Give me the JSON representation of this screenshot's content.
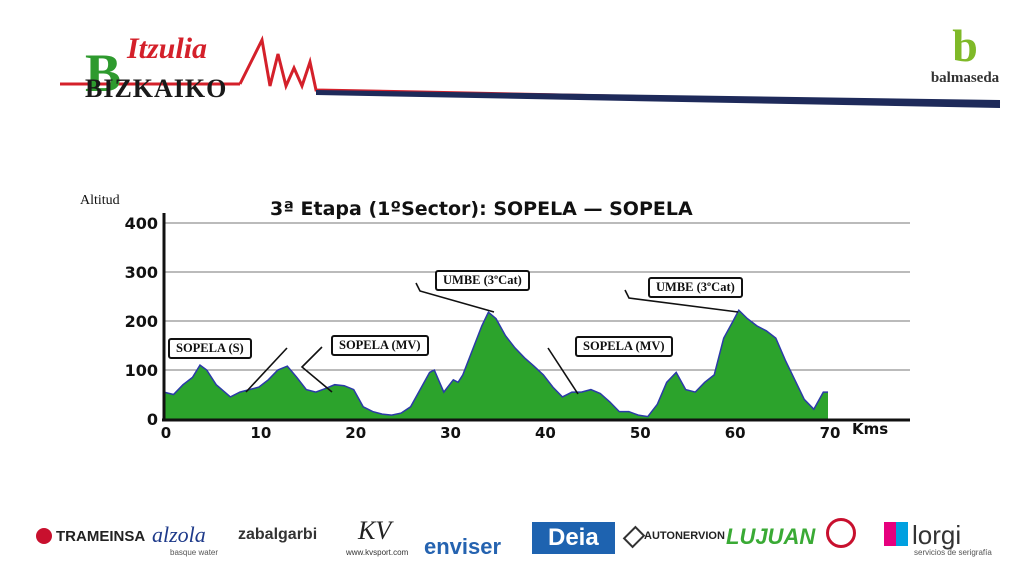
{
  "header": {
    "brand_top": "Itzulia",
    "brand_bottom": "BIZKAIKO",
    "brand_initial": "B",
    "sponsor_mark": "b",
    "sponsor_name": "balmaseda",
    "colors": {
      "red": "#d4202a",
      "green": "#2e9a2e",
      "navy": "#1e2a5a"
    }
  },
  "chart_data": {
    "type": "area",
    "title": "3ª Etapa (1ºSector): SOPELA — SOPELA",
    "ylabel": "Altitud",
    "xlabel": "Kms",
    "xlim": [
      0,
      70
    ],
    "ylim": [
      0,
      400
    ],
    "xticks": [
      "0",
      "10",
      "20",
      "30",
      "40",
      "50",
      "60",
      "70"
    ],
    "yticks": [
      "0",
      "100",
      "200",
      "300",
      "400"
    ],
    "grid": true,
    "fill_color": "#2ca32c",
    "line_color": "#2b3aa8",
    "x": [
      0,
      1,
      2,
      3,
      3.8,
      4.5,
      5.5,
      7,
      8,
      9,
      10,
      11,
      12,
      13,
      14,
      15,
      16,
      17,
      18,
      19,
      20,
      21,
      22,
      23,
      24,
      25,
      26,
      27,
      28,
      28.5,
      29.5,
      30.5,
      31,
      31.5,
      32.5,
      33.5,
      34.2,
      35,
      36,
      37,
      38,
      39,
      40,
      41,
      42,
      43,
      44,
      45,
      46,
      47,
      48,
      49,
      50,
      51,
      52,
      53,
      54,
      55,
      56,
      57,
      58,
      59,
      60,
      60.6,
      61.5,
      62.5,
      63.5,
      64.5,
      65.5,
      66.5,
      67.5,
      68.5,
      69.5,
      70
    ],
    "y": [
      55,
      50,
      70,
      85,
      110,
      100,
      70,
      45,
      55,
      60,
      65,
      80,
      100,
      108,
      85,
      60,
      55,
      62,
      70,
      68,
      60,
      25,
      15,
      10,
      8,
      12,
      25,
      60,
      95,
      100,
      55,
      80,
      75,
      90,
      140,
      190,
      218,
      205,
      170,
      145,
      125,
      108,
      90,
      65,
      45,
      55,
      55,
      60,
      52,
      35,
      15,
      15,
      8,
      5,
      30,
      75,
      95,
      60,
      55,
      75,
      90,
      165,
      200,
      222,
      205,
      190,
      180,
      165,
      120,
      80,
      40,
      20,
      55,
      55
    ],
    "annotations": [
      {
        "label": "SOPELA (S)",
        "x": 8,
        "y": 55
      },
      {
        "label": "SOPELA (MV)",
        "x": 17,
        "y": 55
      },
      {
        "label": "UMBE (3ºCat)",
        "x": 34.2,
        "y": 218
      },
      {
        "label": "SOPELA (MV)",
        "x": 44,
        "y": 55
      },
      {
        "label": "UMBE (3ºCat)",
        "x": 60.6,
        "y": 222
      }
    ]
  },
  "footer": {
    "sponsors": [
      "TRAMEINSA",
      "alzola",
      "basque water",
      "zabalgarbi",
      "www.kvsport.com",
      "enviser",
      "Deia",
      "AUTONERVION",
      "LUJUAN",
      "lorgi",
      "servicios de serigrafía"
    ]
  }
}
